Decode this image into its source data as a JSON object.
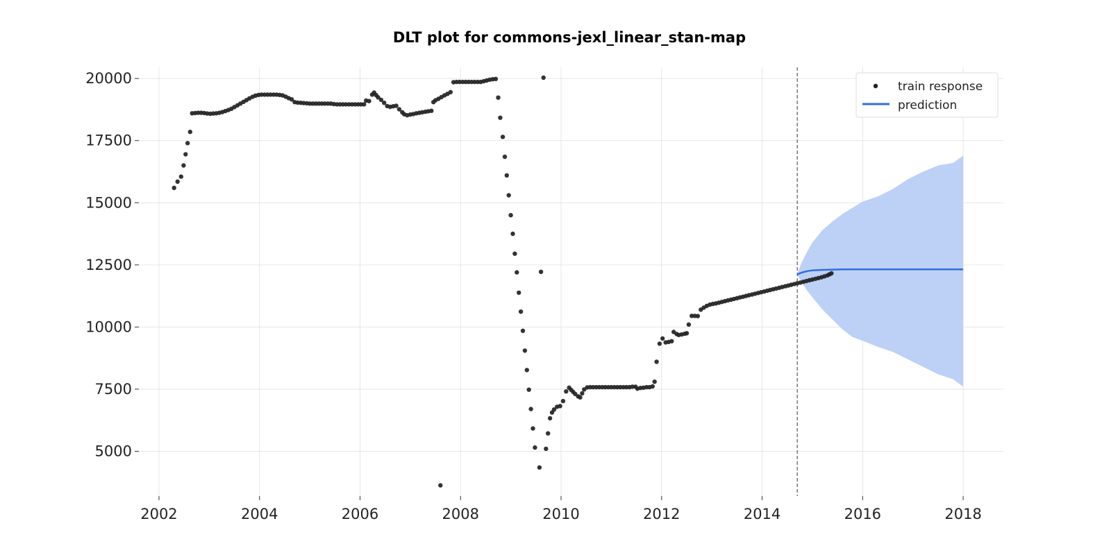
{
  "chart_data": {
    "type": "scatter",
    "title": "DLT plot for commons-jexl_linear_stan-map",
    "xlabel": "",
    "ylabel": "",
    "xlim": [
      2001.6,
      2018.8
    ],
    "ylim": [
      3200,
      20450
    ],
    "x_ticks": [
      "2002",
      "2004",
      "2006",
      "2008",
      "2010",
      "2012",
      "2014",
      "2016",
      "2018"
    ],
    "y_ticks": [
      "5000",
      "7500",
      "10000",
      "12500",
      "15000",
      "17500",
      "20000"
    ],
    "grid": true,
    "legend_position": "top-right",
    "forecast_start": 2014.7,
    "colors": {
      "train": "#222222",
      "prediction": "#2f6ee0",
      "band": "#bdd1f7",
      "divider": "#777777"
    },
    "series": [
      {
        "name": "train response",
        "kind": "scatter",
        "points": [
          [
            2002.3,
            15600
          ],
          [
            2002.37,
            15850
          ],
          [
            2002.44,
            16050
          ],
          [
            2002.49,
            16500
          ],
          [
            2002.53,
            16950
          ],
          [
            2002.57,
            17400
          ],
          [
            2002.62,
            17850
          ],
          [
            2002.66,
            18600
          ],
          [
            2002.72,
            18610
          ],
          [
            2002.78,
            18620
          ],
          [
            2002.84,
            18620
          ],
          [
            2002.9,
            18610
          ],
          [
            2002.96,
            18590
          ],
          [
            2003.02,
            18580
          ],
          [
            2003.08,
            18590
          ],
          [
            2003.14,
            18600
          ],
          [
            2003.2,
            18620
          ],
          [
            2003.26,
            18650
          ],
          [
            2003.32,
            18690
          ],
          [
            2003.38,
            18730
          ],
          [
            2003.44,
            18780
          ],
          [
            2003.5,
            18850
          ],
          [
            2003.56,
            18920
          ],
          [
            2003.62,
            18990
          ],
          [
            2003.68,
            19060
          ],
          [
            2003.74,
            19130
          ],
          [
            2003.8,
            19200
          ],
          [
            2003.86,
            19260
          ],
          [
            2003.92,
            19310
          ],
          [
            2003.98,
            19340
          ],
          [
            2004.04,
            19350
          ],
          [
            2004.1,
            19350
          ],
          [
            2004.16,
            19350
          ],
          [
            2004.22,
            19350
          ],
          [
            2004.28,
            19350
          ],
          [
            2004.34,
            19350
          ],
          [
            2004.4,
            19340
          ],
          [
            2004.46,
            19320
          ],
          [
            2004.52,
            19270
          ],
          [
            2004.58,
            19210
          ],
          [
            2004.64,
            19160
          ],
          [
            2004.7,
            19050
          ],
          [
            2004.76,
            19030
          ],
          [
            2004.82,
            19020
          ],
          [
            2004.88,
            19010
          ],
          [
            2004.94,
            19000
          ],
          [
            2005.0,
            18990
          ],
          [
            2005.06,
            18990
          ],
          [
            2005.12,
            18990
          ],
          [
            2005.18,
            18990
          ],
          [
            2005.24,
            18990
          ],
          [
            2005.3,
            18990
          ],
          [
            2005.36,
            18990
          ],
          [
            2005.42,
            18990
          ],
          [
            2005.48,
            18970
          ],
          [
            2005.54,
            18960
          ],
          [
            2005.6,
            18960
          ],
          [
            2005.66,
            18960
          ],
          [
            2005.72,
            18960
          ],
          [
            2005.78,
            18960
          ],
          [
            2005.84,
            18960
          ],
          [
            2005.9,
            18960
          ],
          [
            2005.96,
            18960
          ],
          [
            2006.02,
            18960
          ],
          [
            2006.08,
            18960
          ],
          [
            2006.12,
            19110
          ],
          [
            2006.18,
            19090
          ],
          [
            2006.24,
            19350
          ],
          [
            2006.28,
            19430
          ],
          [
            2006.32,
            19330
          ],
          [
            2006.36,
            19240
          ],
          [
            2006.42,
            19140
          ],
          [
            2006.48,
            19020
          ],
          [
            2006.54,
            18890
          ],
          [
            2006.6,
            18860
          ],
          [
            2006.66,
            18880
          ],
          [
            2006.72,
            18900
          ],
          [
            2006.78,
            18760
          ],
          [
            2006.84,
            18640
          ],
          [
            2006.88,
            18560
          ],
          [
            2006.94,
            18520
          ],
          [
            2007.0,
            18550
          ],
          [
            2007.06,
            18570
          ],
          [
            2007.12,
            18600
          ],
          [
            2007.18,
            18620
          ],
          [
            2007.24,
            18640
          ],
          [
            2007.3,
            18660
          ],
          [
            2007.36,
            18680
          ],
          [
            2007.42,
            18700
          ],
          [
            2007.46,
            19050
          ],
          [
            2007.5,
            19120
          ],
          [
            2007.56,
            19180
          ],
          [
            2007.62,
            19250
          ],
          [
            2007.68,
            19320
          ],
          [
            2007.74,
            19380
          ],
          [
            2007.8,
            19450
          ],
          [
            2007.86,
            19850
          ],
          [
            2007.92,
            19860
          ],
          [
            2007.98,
            19860
          ],
          [
            2008.04,
            19860
          ],
          [
            2008.1,
            19860
          ],
          [
            2008.16,
            19860
          ],
          [
            2008.22,
            19860
          ],
          [
            2008.28,
            19860
          ],
          [
            2008.34,
            19860
          ],
          [
            2008.4,
            19860
          ],
          [
            2008.46,
            19890
          ],
          [
            2008.52,
            19920
          ],
          [
            2008.58,
            19950
          ],
          [
            2008.64,
            19970
          ],
          [
            2008.7,
            19980
          ],
          [
            2008.75,
            19230
          ],
          [
            2008.79,
            18420
          ],
          [
            2008.84,
            17650
          ],
          [
            2008.88,
            16850
          ],
          [
            2008.92,
            16100
          ],
          [
            2008.96,
            15300
          ],
          [
            2009.0,
            14500
          ],
          [
            2009.04,
            13750
          ],
          [
            2009.08,
            12950
          ],
          [
            2009.12,
            12200
          ],
          [
            2009.16,
            11380
          ],
          [
            2009.2,
            10620
          ],
          [
            2009.24,
            9850
          ],
          [
            2009.28,
            9050
          ],
          [
            2009.32,
            8270
          ],
          [
            2009.36,
            7480
          ],
          [
            2009.4,
            6700
          ],
          [
            2009.44,
            5920
          ],
          [
            2009.48,
            5150
          ],
          [
            2009.57,
            4350
          ],
          [
            2009.6,
            12220
          ],
          [
            2009.65,
            20030
          ],
          [
            2009.7,
            5100
          ],
          [
            2009.74,
            5720
          ],
          [
            2009.78,
            6330
          ],
          [
            2009.82,
            6560
          ],
          [
            2009.86,
            6680
          ],
          [
            2009.92,
            6790
          ],
          [
            2009.98,
            6820
          ],
          [
            2010.04,
            7020
          ],
          [
            2010.1,
            7410
          ],
          [
            2010.16,
            7560
          ],
          [
            2010.2,
            7470
          ],
          [
            2010.24,
            7390
          ],
          [
            2010.28,
            7310
          ],
          [
            2010.34,
            7210
          ],
          [
            2010.38,
            7170
          ],
          [
            2010.42,
            7330
          ],
          [
            2010.46,
            7490
          ],
          [
            2010.52,
            7570
          ],
          [
            2010.58,
            7580
          ],
          [
            2010.64,
            7580
          ],
          [
            2010.7,
            7580
          ],
          [
            2010.76,
            7580
          ],
          [
            2010.82,
            7580
          ],
          [
            2010.88,
            7580
          ],
          [
            2010.94,
            7580
          ],
          [
            2011.0,
            7580
          ],
          [
            2011.06,
            7580
          ],
          [
            2011.12,
            7580
          ],
          [
            2011.18,
            7580
          ],
          [
            2011.24,
            7580
          ],
          [
            2011.3,
            7580
          ],
          [
            2011.36,
            7580
          ],
          [
            2011.42,
            7600
          ],
          [
            2011.48,
            7600
          ],
          [
            2011.52,
            7520
          ],
          [
            2011.58,
            7550
          ],
          [
            2011.64,
            7560
          ],
          [
            2011.7,
            7580
          ],
          [
            2011.76,
            7580
          ],
          [
            2011.82,
            7610
          ],
          [
            2011.86,
            7800
          ],
          [
            2011.9,
            8600
          ],
          [
            2011.96,
            9330
          ],
          [
            2012.02,
            9540
          ],
          [
            2012.08,
            9380
          ],
          [
            2012.14,
            9400
          ],
          [
            2012.2,
            9430
          ],
          [
            2012.24,
            9800
          ],
          [
            2012.3,
            9720
          ],
          [
            2012.34,
            9680
          ],
          [
            2012.4,
            9700
          ],
          [
            2012.46,
            9730
          ],
          [
            2012.5,
            9750
          ],
          [
            2012.54,
            10100
          ],
          [
            2012.6,
            10450
          ],
          [
            2012.66,
            10450
          ],
          [
            2012.72,
            10440
          ],
          [
            2012.78,
            10700
          ],
          [
            2012.84,
            10780
          ],
          [
            2012.9,
            10850
          ],
          [
            2012.96,
            10900
          ],
          [
            2013.02,
            10930
          ],
          [
            2013.08,
            10950
          ],
          [
            2013.14,
            10980
          ],
          [
            2013.2,
            11010
          ],
          [
            2013.26,
            11040
          ],
          [
            2013.32,
            11070
          ],
          [
            2013.38,
            11100
          ],
          [
            2013.44,
            11130
          ],
          [
            2013.5,
            11160
          ],
          [
            2013.56,
            11190
          ],
          [
            2013.62,
            11220
          ],
          [
            2013.68,
            11250
          ],
          [
            2013.74,
            11280
          ],
          [
            2013.8,
            11310
          ],
          [
            2013.86,
            11340
          ],
          [
            2013.92,
            11370
          ],
          [
            2013.98,
            11400
          ],
          [
            2014.04,
            11430
          ],
          [
            2014.1,
            11460
          ],
          [
            2014.16,
            11490
          ],
          [
            2014.22,
            11520
          ],
          [
            2014.28,
            11550
          ],
          [
            2014.34,
            11580
          ],
          [
            2014.4,
            11610
          ],
          [
            2014.46,
            11640
          ],
          [
            2014.52,
            11670
          ],
          [
            2014.58,
            11700
          ],
          [
            2014.64,
            11730
          ],
          [
            2014.7,
            11760
          ],
          [
            2014.76,
            11790
          ],
          [
            2014.82,
            11820
          ],
          [
            2014.88,
            11850
          ],
          [
            2014.94,
            11880
          ],
          [
            2015.0,
            11910
          ],
          [
            2015.06,
            11940
          ],
          [
            2015.12,
            11970
          ],
          [
            2015.18,
            12000
          ],
          [
            2015.24,
            12040
          ],
          [
            2015.3,
            12080
          ],
          [
            2015.34,
            12120
          ],
          [
            2015.38,
            12160
          ],
          [
            2007.6,
            3630
          ]
        ]
      },
      {
        "name": "prediction",
        "kind": "line",
        "x": [
          2014.7,
          2014.8,
          2014.9,
          2015.0,
          2015.2,
          2015.4,
          2015.6,
          2016.0,
          2016.5,
          2017.0,
          2017.5,
          2018.0
        ],
        "values": [
          12120,
          12200,
          12250,
          12280,
          12300,
          12310,
          12320,
          12320,
          12320,
          12320,
          12320,
          12320
        ]
      },
      {
        "name": "prediction interval",
        "kind": "band",
        "x": [
          2014.7,
          2014.8,
          2014.9,
          2015.0,
          2015.2,
          2015.4,
          2015.6,
          2015.8,
          2016.0,
          2016.3,
          2016.6,
          2016.9,
          2017.2,
          2017.5,
          2017.8,
          2018.0
        ],
        "upper": [
          12150,
          12650,
          13050,
          13400,
          13900,
          14250,
          14550,
          14800,
          15050,
          15250,
          15550,
          15950,
          16250,
          16500,
          16600,
          16900
        ],
        "lower": [
          12100,
          11750,
          11450,
          11200,
          10700,
          10300,
          9900,
          9600,
          9450,
          9200,
          9000,
          8700,
          8400,
          8100,
          7900,
          7600
        ]
      }
    ]
  }
}
